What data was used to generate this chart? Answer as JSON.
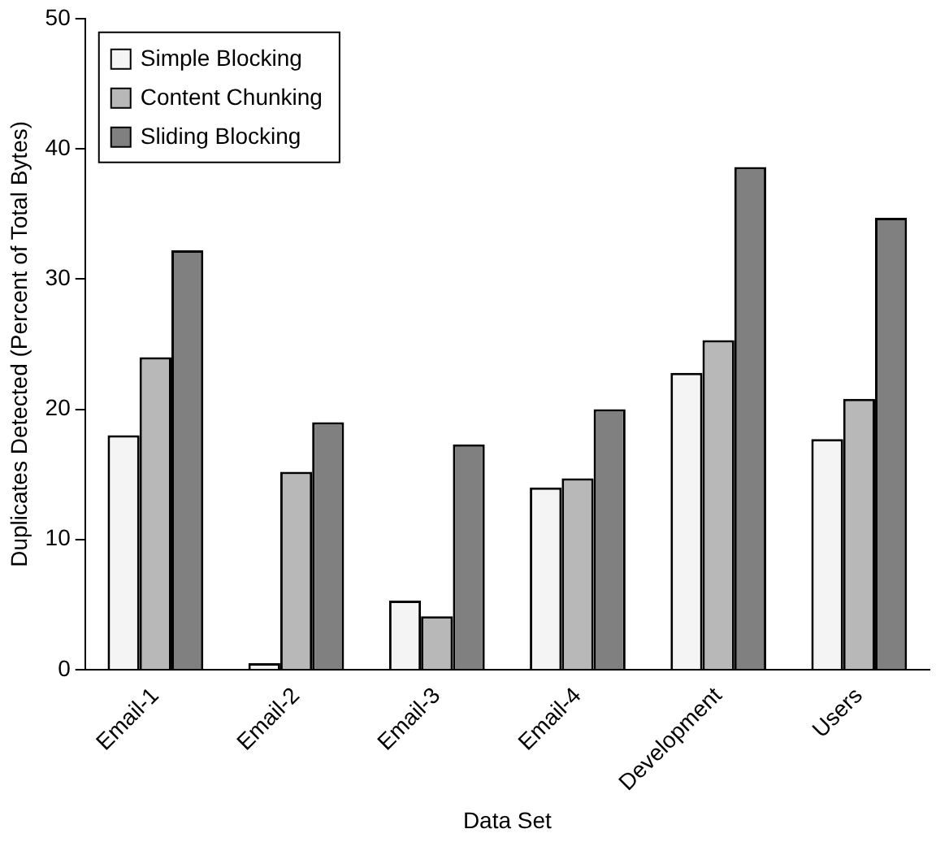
{
  "chart_data": {
    "type": "bar",
    "xlabel": "Data Set",
    "ylabel": "Duplicates Detected (Percent of Total Bytes)",
    "categories": [
      "Email-1",
      "Email-2",
      "Email-3",
      "Email-4",
      "Development",
      "Users"
    ],
    "series": [
      {
        "name": "Simple Blocking",
        "color": "#f4f4f4",
        "values": [
          18,
          0.5,
          5.3,
          14,
          22.8,
          17.7
        ]
      },
      {
        "name": "Content Chunking",
        "color": "#b8b8b8",
        "values": [
          24,
          15.2,
          4.1,
          14.7,
          25.3,
          20.8
        ]
      },
      {
        "name": "Sliding Blocking",
        "color": "#808080",
        "values": [
          32.2,
          19,
          17.3,
          20,
          38.6,
          34.7
        ]
      }
    ],
    "ylim": [
      0,
      50
    ],
    "yticks": [
      0,
      10,
      20,
      30,
      40,
      50
    ],
    "grid": false,
    "legend": "top left"
  }
}
